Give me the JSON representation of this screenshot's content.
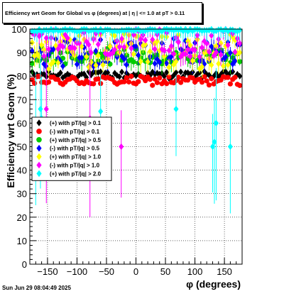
{
  "chart_data": {
    "type": "scatter",
    "title": "Efficiency wrt Geom for Global vs φ (degrees) at |  η  | <= 1.0 at pT > 0.11",
    "xlabel": "φ (degrees)",
    "ylabel": "Efficiency wrt Geom (%)",
    "xlim": [
      -180,
      180
    ],
    "ylim": [
      0,
      100
    ],
    "xticks": [
      -150,
      -100,
      -50,
      0,
      50,
      100,
      150
    ],
    "xtick_labels": [
      "−150",
      "−100",
      "−50",
      "0",
      "50",
      "100",
      "150"
    ],
    "yticks": [
      0,
      10,
      20,
      30,
      40,
      50,
      60,
      70,
      80,
      90,
      100
    ],
    "ytick_labels": [
      "0",
      "10",
      "20",
      "30",
      "40",
      "50",
      "60",
      "70",
      "80",
      "90",
      "100"
    ],
    "grid": true,
    "legend_position": "left-middle",
    "series": [
      {
        "name": "(+) with pT/|q| > 0.1",
        "color": "#000000",
        "marker": "diamond",
        "band": [
          79,
          82
        ],
        "errors": false
      },
      {
        "name": "(-) with pT/|q| > 0.1",
        "color": "#ff0000",
        "marker": "circle",
        "band": [
          76,
          80
        ],
        "errors": false
      },
      {
        "name": "(+) with pT/|q| > 0.5",
        "color": "#00cc00",
        "marker": "circle",
        "band": [
          85,
          92
        ],
        "errors": true
      },
      {
        "name": "(-) with pT/|q| > 0.5",
        "color": "#0000ff",
        "marker": "diamond",
        "band": [
          84,
          96
        ],
        "errors": true
      },
      {
        "name": "(+) with pT/|q| > 1.0",
        "color": "#ffff00",
        "marker": "diamond",
        "band": [
          83,
          98
        ],
        "errors": true
      },
      {
        "name": "(-) with pT/|q| > 1.0",
        "color": "#ff00ff",
        "marker": "diamond",
        "band": [
          88,
          100
        ],
        "errors": true,
        "outliers": [
          [
            -152,
            66
          ],
          [
            -78,
            62
          ],
          [
            -25,
            50
          ]
        ]
      },
      {
        "name": "(+) with pT/|q| > 2.0",
        "color": "#00ffff",
        "marker": "diamond",
        "band": [
          99,
          100
        ],
        "errors": true,
        "outliers": [
          [
            -170,
            58
          ],
          [
            -162,
            66
          ],
          [
            -160,
            62
          ],
          [
            -60,
            65
          ],
          [
            68,
            66
          ],
          [
            130,
            50
          ],
          [
            133,
            52
          ],
          [
            136,
            60
          ],
          [
            160,
            50
          ]
        ]
      }
    ]
  },
  "footer": {
    "timestamp": "Sun Jun 29 08:04:49 2025"
  }
}
